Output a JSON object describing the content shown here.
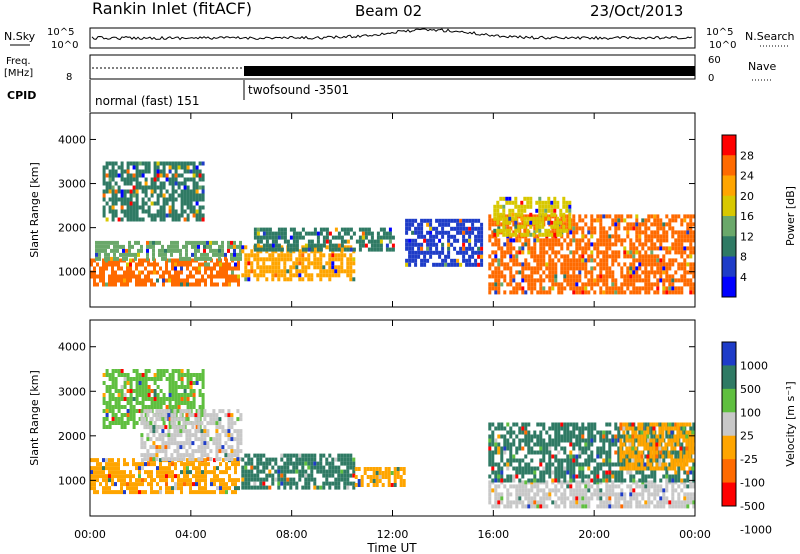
{
  "header": {
    "station": "Rankin Inlet (fitACF)",
    "beam": "Beam 02",
    "date": "23/Oct/2013"
  },
  "noise_panel": {
    "left_label": "N.Sky",
    "right_label": "N.Search",
    "tick_top": "10^5",
    "tick_bottom": "10^0"
  },
  "freq_panel": {
    "left_label_1": "Freq.",
    "left_label_2": "[MHz]",
    "left_tick": "8",
    "right_label": "Nave",
    "right_tick_top": "60",
    "right_tick_bottom": "0"
  },
  "cpid_panel": {
    "label": "CPID",
    "mode_1": "normal (fast) 151",
    "mode_2": "twofsound -3501"
  },
  "chart_data": [
    {
      "type": "heatmap",
      "name": "power",
      "ylabel": "Slant Range [km]",
      "xlabel": "Time UT",
      "ylim": [
        200,
        4600
      ],
      "yticks": [
        "1000",
        "2000",
        "3000",
        "4000"
      ],
      "xticks": [
        "00:00",
        "04:00",
        "08:00",
        "12:00",
        "16:00",
        "20:00",
        "00:00"
      ],
      "colorbar": {
        "label": "Power [dB]",
        "labels": [
          "28",
          "24",
          "20",
          "16",
          "12",
          "8",
          "4"
        ],
        "colors": [
          "#ff0000",
          "#ff6a00",
          "#ffa500",
          "#d8c800",
          "#6aa86a",
          "#2f7a64",
          "#1e3cc8",
          "#0000ff"
        ]
      },
      "regions": [
        {
          "t0": 0.0,
          "t1": 5.9,
          "r0": 700,
          "r1": 1300,
          "value": 28
        },
        {
          "t0": 0.2,
          "t1": 6.0,
          "r0": 1300,
          "r1": 1700,
          "value": 16
        },
        {
          "t0": 0.5,
          "t1": 4.5,
          "r0": 2200,
          "r1": 3500,
          "value": 12
        },
        {
          "t0": 6.0,
          "t1": 10.5,
          "r0": 800,
          "r1": 1600,
          "value": 22
        },
        {
          "t0": 6.5,
          "t1": 12.0,
          "r0": 1500,
          "r1": 2000,
          "value": 10
        },
        {
          "t0": 12.5,
          "t1": 15.5,
          "r0": 1200,
          "r1": 2200,
          "value": 6
        },
        {
          "t0": 15.8,
          "t1": 23.9,
          "r0": 500,
          "r1": 2300,
          "value": 28
        },
        {
          "t0": 16.0,
          "t1": 19.0,
          "r0": 1800,
          "r1": 2700,
          "value": 18
        }
      ]
    },
    {
      "type": "heatmap",
      "name": "velocity",
      "ylabel": "Slant Range [km]",
      "xlabel": "Time UT",
      "ylim": [
        200,
        4600
      ],
      "yticks": [
        "1000",
        "2000",
        "3000",
        "4000"
      ],
      "xticks": [
        "00:00",
        "04:00",
        "08:00",
        "12:00",
        "16:00",
        "20:00",
        "00:00"
      ],
      "colorbar": {
        "label": "Velocity [m s⁻¹]",
        "labels": [
          "1000",
          "500",
          "100",
          "25",
          "-25",
          "-100",
          "-500",
          "-1000"
        ],
        "colors": [
          "#1e3cc8",
          "#2f7a64",
          "#5fbf3f",
          "#c8c8c8",
          "#ffa500",
          "#ff6a00",
          "#ff0000"
        ]
      },
      "regions": [
        {
          "t0": 0.0,
          "t1": 5.9,
          "r0": 700,
          "r1": 1500,
          "value": -100
        },
        {
          "t0": 0.5,
          "t1": 4.5,
          "r0": 2200,
          "r1": 3500,
          "value": 100
        },
        {
          "t0": 2.0,
          "t1": 6.0,
          "r0": 1500,
          "r1": 2600,
          "value": 0
        },
        {
          "t0": 6.0,
          "t1": 10.5,
          "r0": 800,
          "r1": 1600,
          "value": 500
        },
        {
          "t0": 10.5,
          "t1": 12.5,
          "r0": 900,
          "r1": 1300,
          "value": -100
        },
        {
          "t0": 15.8,
          "t1": 23.9,
          "r0": 400,
          "r1": 1000,
          "value": 0
        },
        {
          "t0": 15.8,
          "t1": 23.9,
          "r0": 1000,
          "r1": 2300,
          "value": 500
        },
        {
          "t0": 21.0,
          "t1": 23.9,
          "r0": 1300,
          "r1": 2300,
          "value": -100
        }
      ]
    }
  ]
}
